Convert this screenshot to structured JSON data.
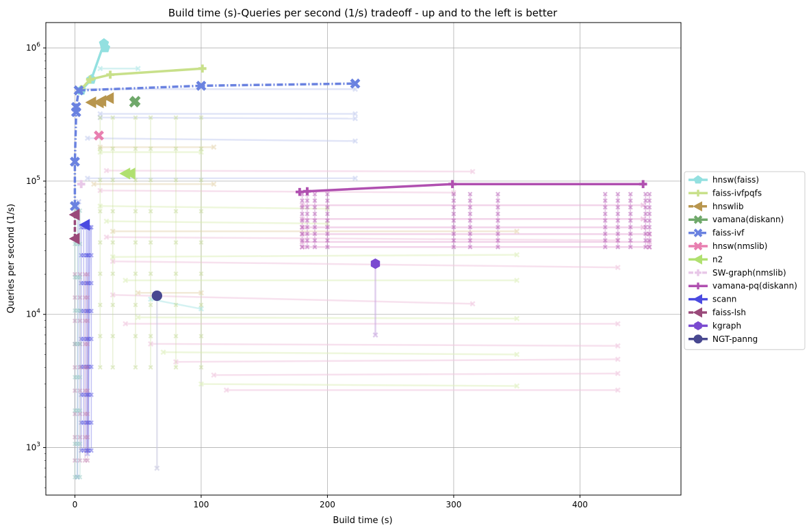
{
  "chart_data": {
    "type": "line",
    "title": "Build time (s)-Queries per second (1/s) tradeoff - up and to the left is better",
    "xlabel": "Build time (s)",
    "ylabel": "Queries per second (1/s)",
    "xscale": "linear",
    "yscale": "log",
    "xlim": [
      -23,
      480
    ],
    "ylim": [
      440,
      1550000
    ],
    "xticks": [
      0,
      100,
      200,
      300,
      400
    ],
    "xtick_labels": [
      "0",
      "100",
      "200",
      "300",
      "400"
    ],
    "yticks": [
      1000,
      10000,
      100000,
      1000000
    ],
    "ytick_labels": [
      "10^3",
      "10^4",
      "10^5",
      "10^6"
    ],
    "grid": true,
    "legend_position": "center-right-outside",
    "series": [
      {
        "name": "hnsw(faiss)",
        "color": "#93e0e0",
        "marker": "pentagon",
        "dash": "solid",
        "points": [
          [
            5,
            480000
          ],
          [
            13,
            580000
          ],
          [
            23,
            1080000
          ],
          [
            24,
            1000000
          ]
        ]
      },
      {
        "name": "faiss-ivfpqfs",
        "color": "#c8e08a",
        "marker": "plus",
        "dash": "solid",
        "points": [
          [
            5,
            490000
          ],
          [
            12,
            580000
          ],
          [
            28,
            630000
          ],
          [
            101,
            700000
          ]
        ]
      },
      {
        "name": "hnswlib",
        "color": "#b8964e",
        "marker": "triangle-left",
        "dash": "dashed",
        "points": [
          [
            13,
            390000
          ],
          [
            19,
            390000
          ],
          [
            21,
            400000
          ],
          [
            27,
            420000
          ]
        ]
      },
      {
        "name": "vamana(diskann)",
        "color": "#6fa86a",
        "marker": "x",
        "dash": "solid",
        "points": [
          [
            47,
            390000
          ],
          [
            48,
            400000
          ]
        ]
      },
      {
        "name": "faiss-ivf",
        "color": "#6a82e0",
        "marker": "x",
        "dash": "dashdot",
        "points": [
          [
            0,
            65000
          ],
          [
            0,
            140000
          ],
          [
            1,
            330000
          ],
          [
            1,
            360000
          ],
          [
            3,
            480000
          ],
          [
            100,
            520000
          ],
          [
            222,
            540000
          ]
        ]
      },
      {
        "name": "hnsw(nmslib)",
        "color": "#e87fb0",
        "marker": "x",
        "dash": "solid",
        "points": [
          [
            19,
            220000
          ]
        ]
      },
      {
        "name": "n2",
        "color": "#b0e070",
        "marker": "triangle-left",
        "dash": "solid",
        "points": [
          [
            40,
            114000
          ],
          [
            44,
            114000
          ]
        ]
      },
      {
        "name": "SW-graph(nmslib)",
        "color": "#e8c8e8",
        "marker": "plus",
        "dash": "dashed",
        "points": [
          [
            5,
            95000
          ]
        ]
      },
      {
        "name": "vamana-pq(diskann)",
        "color": "#b050b0",
        "marker": "plus",
        "dash": "solid",
        "points": [
          [
            178,
            83000
          ],
          [
            184,
            84000
          ],
          [
            299,
            95000
          ],
          [
            450,
            95000
          ]
        ]
      },
      {
        "name": "scann",
        "color": "#4a4ae0",
        "marker": "triangle-left",
        "dash": "solid",
        "points": [
          [
            8,
            47000
          ]
        ]
      },
      {
        "name": "faiss-lsh",
        "color": "#9a4a7a",
        "marker": "triangle-left",
        "dash": "dashed",
        "points": [
          [
            0,
            37000
          ],
          [
            0,
            56000
          ]
        ]
      },
      {
        "name": "kgraph",
        "color": "#7a4ad0",
        "marker": "hexagon",
        "dash": "solid",
        "points": [
          [
            238,
            24000
          ]
        ]
      },
      {
        "name": "NGT-panng",
        "color": "#484890",
        "marker": "circle",
        "dash": "solid",
        "points": [
          [
            65,
            13800
          ]
        ]
      }
    ],
    "background_lines": [
      {
        "color": "#e8b0d8",
        "points": [
          [
            180,
            66000
          ],
          [
            450,
            66000
          ]
        ]
      },
      {
        "color": "#e8b0d8",
        "points": [
          [
            180,
            52000
          ],
          [
            450,
            52000
          ]
        ]
      },
      {
        "color": "#e8b0d8",
        "points": [
          [
            180,
            45000
          ],
          [
            450,
            45000
          ]
        ]
      },
      {
        "color": "#e8b0d8",
        "points": [
          [
            180,
            40000
          ],
          [
            455,
            40000
          ]
        ]
      },
      {
        "color": "#e8b0d8",
        "points": [
          [
            180,
            35000
          ],
          [
            455,
            35000
          ]
        ]
      },
      {
        "color": "#e8b0d8",
        "points": [
          [
            180,
            32000
          ],
          [
            455,
            32000
          ]
        ]
      },
      {
        "color": "#f0c8e0",
        "points": [
          [
            25,
            120000
          ],
          [
            315,
            118000
          ]
        ]
      },
      {
        "color": "#f0c8e0",
        "points": [
          [
            20,
            85000
          ],
          [
            300,
            82000
          ]
        ]
      },
      {
        "color": "#f0c8e0",
        "points": [
          [
            25,
            38000
          ],
          [
            430,
            36000
          ]
        ]
      },
      {
        "color": "#f0c8e0",
        "points": [
          [
            30,
            25000
          ],
          [
            430,
            22500
          ]
        ]
      },
      {
        "color": "#f0c8e0",
        "points": [
          [
            30,
            14000
          ],
          [
            315,
            12000
          ]
        ]
      },
      {
        "color": "#f0c8e0",
        "points": [
          [
            40,
            8500
          ],
          [
            430,
            8500
          ]
        ]
      },
      {
        "color": "#f0c8e0",
        "points": [
          [
            60,
            6000
          ],
          [
            430,
            5800
          ]
        ]
      },
      {
        "color": "#f0c8e0",
        "points": [
          [
            80,
            4400
          ],
          [
            430,
            4600
          ]
        ]
      },
      {
        "color": "#f0c8e0",
        "points": [
          [
            110,
            3500
          ],
          [
            430,
            3600
          ]
        ]
      },
      {
        "color": "#f0c8e0",
        "points": [
          [
            120,
            2700
          ],
          [
            430,
            2700
          ]
        ]
      },
      {
        "color": "#c8d0f0",
        "points": [
          [
            20,
            320000
          ],
          [
            222,
            320000
          ]
        ]
      },
      {
        "color": "#c8d0f0",
        "points": [
          [
            20,
            300000
          ],
          [
            222,
            295000
          ]
        ]
      },
      {
        "color": "#c8d0f0",
        "points": [
          [
            10,
            210000
          ],
          [
            222,
            200000
          ]
        ]
      },
      {
        "color": "#c8d0f0",
        "points": [
          [
            10,
            105000
          ],
          [
            222,
            105000
          ]
        ]
      },
      {
        "color": "#c8d0f0",
        "points": [
          [
            5,
            490000
          ],
          [
            222,
            490000
          ]
        ]
      },
      {
        "color": "#e0f0c0",
        "points": [
          [
            20,
            165000
          ],
          [
            100,
            165000
          ]
        ]
      },
      {
        "color": "#e0f0c0",
        "points": [
          [
            20,
            65000
          ],
          [
            200,
            62000
          ]
        ]
      },
      {
        "color": "#e0f0c0",
        "points": [
          [
            25,
            50000
          ],
          [
            200,
            48000
          ]
        ]
      },
      {
        "color": "#e0f0c0",
        "points": [
          [
            30,
            27000
          ],
          [
            350,
            28000
          ]
        ]
      },
      {
        "color": "#e0f0c0",
        "points": [
          [
            40,
            18000
          ],
          [
            350,
            18000
          ]
        ]
      },
      {
        "color": "#e0f0c0",
        "points": [
          [
            50,
            9500
          ],
          [
            350,
            9300
          ]
        ]
      },
      {
        "color": "#e0f0c0",
        "points": [
          [
            70,
            5200
          ],
          [
            350,
            5000
          ]
        ]
      },
      {
        "color": "#e0f0c0",
        "points": [
          [
            100,
            3000
          ],
          [
            350,
            2900
          ]
        ]
      },
      {
        "color": "#e8d8b8",
        "points": [
          [
            20,
            180000
          ],
          [
            110,
            180000
          ]
        ]
      },
      {
        "color": "#e8d8b8",
        "points": [
          [
            15,
            95000
          ],
          [
            110,
            95000
          ]
        ]
      },
      {
        "color": "#e8d8b8",
        "points": [
          [
            30,
            42000
          ],
          [
            350,
            42000
          ]
        ]
      },
      {
        "color": "#e8d8b8",
        "points": [
          [
            50,
            14500
          ],
          [
            100,
            14500
          ]
        ]
      },
      {
        "color": "#b0e8e8",
        "points": [
          [
            20,
            700000
          ],
          [
            50,
            700000
          ]
        ]
      },
      {
        "color": "#b0e8e8",
        "points": [
          [
            60,
            13000
          ],
          [
            100,
            11000
          ]
        ]
      },
      {
        "color": "#c8c8e0",
        "points": [
          [
            65,
            700
          ],
          [
            65,
            13800
          ]
        ]
      },
      {
        "color": "#c8a8e0",
        "points": [
          [
            238,
            7000
          ],
          [
            238,
            24000
          ]
        ]
      },
      {
        "color": "#b8c0f0",
        "points": [
          [
            2,
            600
          ],
          [
            3,
            70000
          ]
        ]
      },
      {
        "color": "#a8a8f0",
        "points": [
          [
            10,
            900
          ],
          [
            12,
            45000
          ]
        ]
      }
    ],
    "vertical_clusters": [
      {
        "color": "#b050b0",
        "x": [
          180,
          184,
          190,
          200,
          300,
          313,
          335,
          420,
          430,
          440,
          452,
          455
        ],
        "ymin": 32000,
        "ymax": 80000
      },
      {
        "color": "#5050e0",
        "x": [
          5,
          7,
          9,
          10,
          11,
          13
        ],
        "ymin": 950,
        "ymax": 45000
      },
      {
        "color": "#c080b0",
        "x": [
          0,
          4,
          8,
          10
        ],
        "ymin": 800,
        "ymax": 20000
      },
      {
        "color": "#90c8c0",
        "x": [
          0,
          2,
          4
        ],
        "ymin": 600,
        "ymax": 60000
      },
      {
        "color": "#c0d890",
        "x": [
          20,
          30,
          48,
          60,
          80,
          100
        ],
        "ymin": 4000,
        "ymax": 300000
      }
    ],
    "legend": [
      {
        "label": "hnsw(faiss)",
        "color": "#93e0e0",
        "marker": "pentagon",
        "dash": "solid"
      },
      {
        "label": "faiss-ivfpqfs",
        "color": "#c8e08a",
        "marker": "plus",
        "dash": "solid"
      },
      {
        "label": "hnswlib",
        "color": "#b8964e",
        "marker": "triangle-left",
        "dash": "dashed"
      },
      {
        "label": "vamana(diskann)",
        "color": "#6fa86a",
        "marker": "x",
        "dash": "solid"
      },
      {
        "label": "faiss-ivf",
        "color": "#6a82e0",
        "marker": "x",
        "dash": "dashdot"
      },
      {
        "label": "hnsw(nmslib)",
        "color": "#e87fb0",
        "marker": "x",
        "dash": "solid"
      },
      {
        "label": "n2",
        "color": "#b0e070",
        "marker": "triangle-left",
        "dash": "solid"
      },
      {
        "label": "SW-graph(nmslib)",
        "color": "#e8c8e8",
        "marker": "plus",
        "dash": "dashed"
      },
      {
        "label": "vamana-pq(diskann)",
        "color": "#b050b0",
        "marker": "plus",
        "dash": "solid"
      },
      {
        "label": "scann",
        "color": "#4a4ae0",
        "marker": "triangle-left",
        "dash": "solid"
      },
      {
        "label": "faiss-lsh",
        "color": "#9a4a7a",
        "marker": "triangle-left",
        "dash": "dashed"
      },
      {
        "label": "kgraph",
        "color": "#7a4ad0",
        "marker": "hexagon",
        "dash": "solid"
      },
      {
        "label": "NGT-panng",
        "color": "#484890",
        "marker": "circle",
        "dash": "solid"
      }
    ]
  }
}
